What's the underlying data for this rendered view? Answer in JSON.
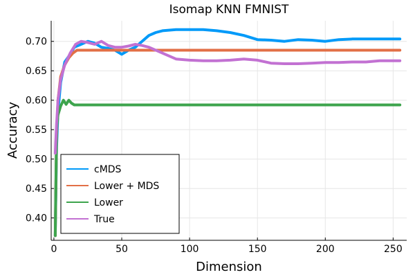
{
  "chart_data": {
    "type": "line",
    "title": "Isomap KNN FMNIST",
    "xlabel": "Dimension",
    "ylabel": "Accuracy",
    "xlim": [
      -2,
      260
    ],
    "ylim": [
      0.362,
      0.735
    ],
    "xticks": [
      0,
      50,
      100,
      150,
      200,
      250
    ],
    "xtick_labels": [
      "0",
      "50",
      "100",
      "150",
      "200",
      "250"
    ],
    "yticks": [
      0.4,
      0.45,
      0.5,
      0.55,
      0.6,
      0.65,
      0.7
    ],
    "ytick_labels": [
      "0.40",
      "0.45",
      "0.50",
      "0.55",
      "0.60",
      "0.65",
      "0.70"
    ],
    "grid": true,
    "legend_position": "bottom-left",
    "series": [
      {
        "name": "cMDS",
        "color": "#009af9",
        "points": [
          [
            1,
            0.37
          ],
          [
            2,
            0.52
          ],
          [
            3,
            0.58
          ],
          [
            5,
            0.63
          ],
          [
            8,
            0.665
          ],
          [
            12,
            0.678
          ],
          [
            15,
            0.69
          ],
          [
            20,
            0.695
          ],
          [
            25,
            0.7
          ],
          [
            30,
            0.697
          ],
          [
            35,
            0.69
          ],
          [
            40,
            0.688
          ],
          [
            45,
            0.685
          ],
          [
            50,
            0.678
          ],
          [
            55,
            0.685
          ],
          [
            60,
            0.69
          ],
          [
            65,
            0.7
          ],
          [
            70,
            0.71
          ],
          [
            75,
            0.715
          ],
          [
            80,
            0.718
          ],
          [
            90,
            0.72
          ],
          [
            100,
            0.72
          ],
          [
            110,
            0.72
          ],
          [
            120,
            0.718
          ],
          [
            130,
            0.715
          ],
          [
            140,
            0.71
          ],
          [
            150,
            0.703
          ],
          [
            160,
            0.702
          ],
          [
            170,
            0.7
          ],
          [
            180,
            0.703
          ],
          [
            190,
            0.702
          ],
          [
            200,
            0.7
          ],
          [
            210,
            0.703
          ],
          [
            220,
            0.704
          ],
          [
            230,
            0.704
          ],
          [
            240,
            0.704
          ],
          [
            255,
            0.704
          ]
        ]
      },
      {
        "name": "Lower + MDS",
        "color": "#e26f46",
        "points": [
          [
            1,
            0.37
          ],
          [
            2,
            0.54
          ],
          [
            3,
            0.6
          ],
          [
            5,
            0.64
          ],
          [
            8,
            0.66
          ],
          [
            11,
            0.672
          ],
          [
            14,
            0.68
          ],
          [
            17,
            0.685
          ],
          [
            20,
            0.685
          ],
          [
            30,
            0.685
          ],
          [
            50,
            0.685
          ],
          [
            100,
            0.685
          ],
          [
            150,
            0.685
          ],
          [
            200,
            0.685
          ],
          [
            255,
            0.685
          ]
        ]
      },
      {
        "name": "Lower",
        "color": "#3da44d",
        "points": [
          [
            1,
            0.37
          ],
          [
            2,
            0.55
          ],
          [
            3,
            0.575
          ],
          [
            5,
            0.59
          ],
          [
            7,
            0.6
          ],
          [
            9,
            0.593
          ],
          [
            11,
            0.6
          ],
          [
            13,
            0.595
          ],
          [
            15,
            0.592
          ],
          [
            20,
            0.592
          ],
          [
            50,
            0.592
          ],
          [
            100,
            0.592
          ],
          [
            150,
            0.592
          ],
          [
            200,
            0.592
          ],
          [
            255,
            0.592
          ]
        ]
      },
      {
        "name": "True",
        "color": "#c271d2",
        "points": [
          [
            1,
            0.51
          ],
          [
            2,
            0.56
          ],
          [
            3,
            0.6
          ],
          [
            5,
            0.635
          ],
          [
            8,
            0.66
          ],
          [
            12,
            0.68
          ],
          [
            16,
            0.695
          ],
          [
            20,
            0.7
          ],
          [
            25,
            0.698
          ],
          [
            30,
            0.695
          ],
          [
            35,
            0.7
          ],
          [
            40,
            0.693
          ],
          [
            45,
            0.69
          ],
          [
            50,
            0.69
          ],
          [
            55,
            0.692
          ],
          [
            60,
            0.695
          ],
          [
            65,
            0.693
          ],
          [
            70,
            0.69
          ],
          [
            80,
            0.68
          ],
          [
            90,
            0.67
          ],
          [
            100,
            0.668
          ],
          [
            110,
            0.667
          ],
          [
            120,
            0.667
          ],
          [
            130,
            0.668
          ],
          [
            140,
            0.67
          ],
          [
            150,
            0.668
          ],
          [
            160,
            0.663
          ],
          [
            170,
            0.662
          ],
          [
            180,
            0.662
          ],
          [
            190,
            0.663
          ],
          [
            200,
            0.664
          ],
          [
            210,
            0.664
          ],
          [
            220,
            0.665
          ],
          [
            230,
            0.665
          ],
          [
            240,
            0.667
          ],
          [
            255,
            0.667
          ]
        ]
      }
    ]
  }
}
